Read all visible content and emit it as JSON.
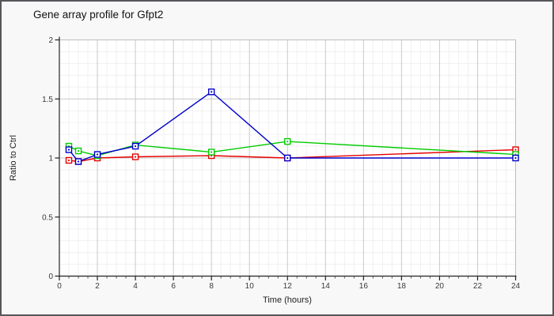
{
  "window": {
    "background": "#f8f8f8",
    "border_color": "#57575a"
  },
  "chart_data": {
    "type": "line",
    "title": "Gene array profile for Gfpt2",
    "xlabel": "Time (hours)",
    "ylabel": "Ratio to Ctrl",
    "xlim": [
      0,
      24
    ],
    "ylim": [
      0,
      2
    ],
    "x_major_ticks": [
      0,
      2,
      4,
      6,
      8,
      10,
      12,
      14,
      16,
      18,
      20,
      22,
      24
    ],
    "y_major_ticks": [
      0,
      0.5,
      1,
      1.5,
      2
    ],
    "x_minor_step": 0.5,
    "y_minor_step": 0.1,
    "grid": true,
    "legend_position": "none",
    "marker": "open-square",
    "colors": {
      "grid_minor": "#f0f0f0",
      "grid_major": "#c9c9c9",
      "plot_border": "#bcbcbc",
      "axis": "#222222",
      "plot_background": "#ffffff"
    },
    "x": [
      0.5,
      1,
      2,
      4,
      8,
      12,
      24
    ],
    "series": [
      {
        "name": "red",
        "color": "#e60000",
        "values": [
          0.98,
          0.97,
          1.0,
          1.01,
          1.02,
          1.0,
          1.07
        ]
      },
      {
        "name": "green",
        "color": "#00cc00",
        "values": [
          1.1,
          1.06,
          1.02,
          1.11,
          1.05,
          1.14,
          1.03
        ]
      },
      {
        "name": "blue",
        "color": "#0000cc",
        "values": [
          1.07,
          0.97,
          1.03,
          1.1,
          1.56,
          1.0,
          1.0
        ]
      }
    ]
  }
}
